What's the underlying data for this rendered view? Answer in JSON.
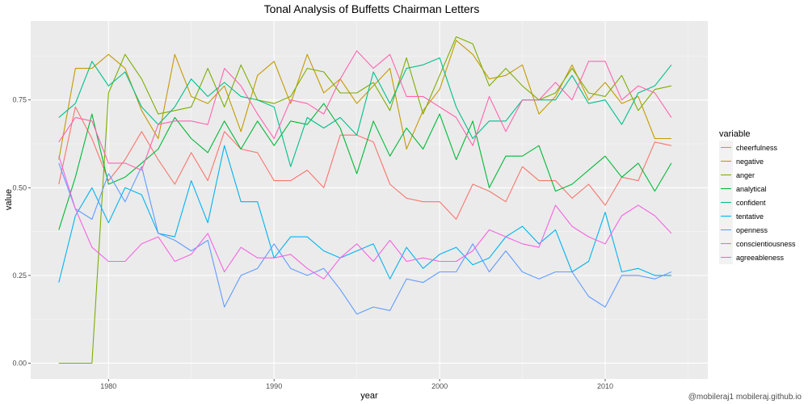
{
  "chart_data": {
    "type": "line",
    "title": "Tonal Analysis of Buffetts Chairman Letters",
    "xlabel": "year",
    "ylabel": "value",
    "xlim": [
      1975.3,
      2016.2
    ],
    "ylim": [
      -0.045,
      0.975
    ],
    "x_ticks": [
      1980,
      1990,
      2000,
      2010
    ],
    "y_ticks": [
      0.0,
      0.25,
      0.5,
      0.75
    ],
    "y_tick_labels": [
      "0.00",
      "0.25",
      "0.50",
      "0.75"
    ],
    "grid": true,
    "legend_title": "variable",
    "legend_position": "right",
    "x": [
      1977,
      1978,
      1979,
      1980,
      1981,
      1982,
      1983,
      1984,
      1985,
      1986,
      1987,
      1988,
      1989,
      1990,
      1991,
      1992,
      1993,
      1994,
      1995,
      1996,
      1997,
      1998,
      1999,
      2000,
      2001,
      2002,
      2003,
      2004,
      2005,
      2006,
      2007,
      2008,
      2009,
      2010,
      2011,
      2012,
      2013,
      2014
    ],
    "series": [
      {
        "name": "cheerfulness",
        "color": "#F8766D",
        "values": [
          0.51,
          0.73,
          0.64,
          0.52,
          0.58,
          0.66,
          0.58,
          0.51,
          0.6,
          0.52,
          0.66,
          0.61,
          0.6,
          0.52,
          0.52,
          0.55,
          0.5,
          0.65,
          0.65,
          0.63,
          0.51,
          0.47,
          0.46,
          0.46,
          0.41,
          0.51,
          0.49,
          0.46,
          0.56,
          0.52,
          0.52,
          0.47,
          0.51,
          0.45,
          0.53,
          0.52,
          0.63,
          0.62
        ]
      },
      {
        "name": "negative",
        "color": "#C49A00",
        "values": [
          0.58,
          0.84,
          0.84,
          0.88,
          0.84,
          0.72,
          0.64,
          0.88,
          0.76,
          0.74,
          0.79,
          0.66,
          0.82,
          0.86,
          0.74,
          0.88,
          0.77,
          0.81,
          0.74,
          0.79,
          0.84,
          0.61,
          0.72,
          0.78,
          0.92,
          0.88,
          0.81,
          0.82,
          0.85,
          0.71,
          0.76,
          0.85,
          0.75,
          0.8,
          0.74,
          0.76,
          0.64,
          0.64
        ]
      },
      {
        "name": "anger",
        "color": "#7CAE00",
        "values": [
          0.0,
          0.0,
          0.0,
          0.77,
          0.88,
          0.81,
          0.71,
          0.72,
          0.73,
          0.84,
          0.73,
          0.85,
          0.75,
          0.74,
          0.76,
          0.84,
          0.83,
          0.77,
          0.77,
          0.8,
          0.72,
          0.87,
          0.71,
          0.82,
          0.93,
          0.91,
          0.79,
          0.84,
          0.79,
          0.75,
          0.77,
          0.84,
          0.77,
          0.76,
          0.82,
          0.72,
          0.78,
          0.79
        ]
      },
      {
        "name": "analytical",
        "color": "#00BA38",
        "values": [
          0.38,
          0.53,
          0.71,
          0.51,
          0.53,
          0.57,
          0.61,
          0.7,
          0.64,
          0.6,
          0.69,
          0.61,
          0.69,
          0.62,
          0.69,
          0.68,
          0.74,
          0.67,
          0.54,
          0.69,
          0.59,
          0.67,
          0.61,
          0.71,
          0.58,
          0.69,
          0.5,
          0.59,
          0.59,
          0.62,
          0.49,
          0.51,
          0.55,
          0.59,
          0.53,
          0.57,
          0.49,
          0.57
        ]
      },
      {
        "name": "confident",
        "color": "#00C08B",
        "values": [
          0.7,
          0.74,
          0.86,
          0.79,
          0.83,
          0.73,
          0.68,
          0.73,
          0.81,
          0.76,
          0.8,
          0.76,
          0.75,
          0.73,
          0.56,
          0.7,
          0.67,
          0.7,
          0.65,
          0.83,
          0.74,
          0.84,
          0.85,
          0.87,
          0.73,
          0.64,
          0.69,
          0.69,
          0.75,
          0.75,
          0.75,
          0.82,
          0.74,
          0.75,
          0.68,
          0.77,
          0.79,
          0.85
        ]
      },
      {
        "name": "tentative",
        "color": "#00B4F0",
        "values": [
          0.23,
          0.42,
          0.5,
          0.4,
          0.5,
          0.48,
          0.37,
          0.36,
          0.52,
          0.4,
          0.62,
          0.46,
          0.46,
          0.3,
          0.36,
          0.36,
          0.32,
          0.3,
          0.32,
          0.34,
          0.24,
          0.33,
          0.27,
          0.31,
          0.33,
          0.28,
          0.3,
          0.36,
          0.39,
          0.34,
          0.38,
          0.26,
          0.29,
          0.43,
          0.26,
          0.27,
          0.25,
          0.25
        ]
      },
      {
        "name": "openness",
        "color": "#619CFF",
        "values": [
          0.57,
          0.44,
          0.41,
          0.54,
          0.46,
          0.56,
          0.37,
          0.35,
          0.32,
          0.35,
          0.16,
          0.25,
          0.27,
          0.34,
          0.27,
          0.25,
          0.27,
          0.21,
          0.14,
          0.16,
          0.15,
          0.24,
          0.23,
          0.26,
          0.26,
          0.34,
          0.26,
          0.32,
          0.26,
          0.24,
          0.26,
          0.26,
          0.19,
          0.16,
          0.25,
          0.25,
          0.24,
          0.26
        ]
      },
      {
        "name": "conscientiousness",
        "color": "#F564E3",
        "values": [
          0.59,
          0.44,
          0.33,
          0.29,
          0.29,
          0.34,
          0.36,
          0.29,
          0.31,
          0.37,
          0.26,
          0.33,
          0.3,
          0.3,
          0.31,
          0.27,
          0.24,
          0.3,
          0.34,
          0.29,
          0.35,
          0.29,
          0.3,
          0.29,
          0.29,
          0.32,
          0.38,
          0.36,
          0.34,
          0.33,
          0.45,
          0.39,
          0.36,
          0.34,
          0.42,
          0.45,
          0.42,
          0.37
        ]
      },
      {
        "name": "agreeableness",
        "color": "#FF64B0",
        "values": [
          0.63,
          0.7,
          0.69,
          0.57,
          0.57,
          0.55,
          0.68,
          0.69,
          0.69,
          0.68,
          0.84,
          0.79,
          0.71,
          0.64,
          0.75,
          0.74,
          0.71,
          0.81,
          0.89,
          0.84,
          0.88,
          0.76,
          0.76,
          0.73,
          0.7,
          0.62,
          0.76,
          0.66,
          0.75,
          0.75,
          0.8,
          0.75,
          0.86,
          0.86,
          0.75,
          0.79,
          0.77,
          0.7
        ]
      }
    ]
  },
  "credit": "@mobileraj1   mobileraj.github.io"
}
